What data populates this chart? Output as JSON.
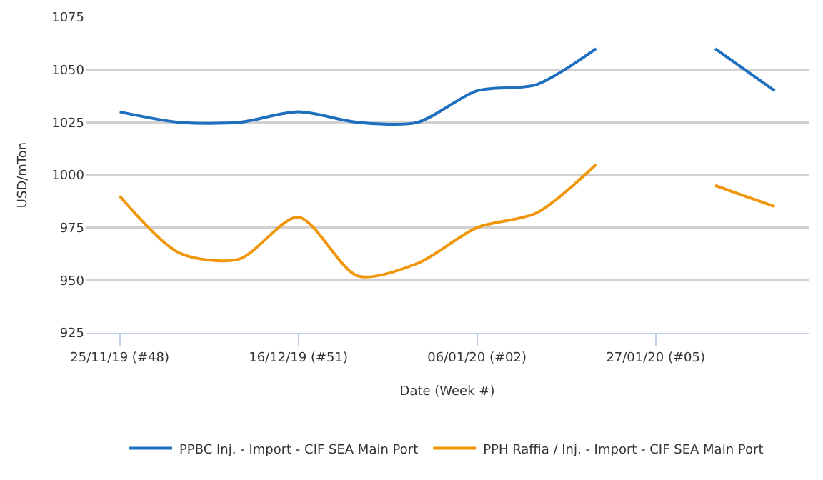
{
  "chart_data": {
    "type": "line",
    "xlabel": "Date (Week #)",
    "ylabel": "USD/mTon",
    "x": [
      "2019-11-25",
      "2019-12-02",
      "2019-12-09",
      "2019-12-16",
      "2019-12-23",
      "2019-12-30",
      "2020-01-06",
      "2020-01-13",
      "2020-01-20",
      "2020-01-27",
      "2020-02-03",
      "2020-02-10"
    ],
    "series": [
      {
        "name": "PPBC Inj. - Import - CIF SEA Main Port",
        "color": "#1f6fbf",
        "values": [
          1030,
          1025,
          1025,
          1030,
          1025,
          1025,
          1040,
          1043,
          1060,
          null,
          1060,
          1040
        ]
      },
      {
        "name": "PPH Raffia / Inj. - Import - CIF SEA Main Port",
        "color": "#f0960a",
        "values": [
          990,
          963,
          960,
          980,
          952,
          958,
          975,
          982,
          1005,
          null,
          995,
          985
        ]
      }
    ],
    "xlim": [
      "2019-11-21",
      "2020-02-14"
    ],
    "xticks": [
      {
        "value": "2019-11-25",
        "label": "25/11/19 (#48)"
      },
      {
        "value": "2019-12-16",
        "label": "16/12/19 (#51)"
      },
      {
        "value": "2020-01-06",
        "label": "06/01/20 (#02)"
      },
      {
        "value": "2020-01-27",
        "label": "27/01/20 (#05)"
      }
    ],
    "ylim": [
      925,
      1075
    ],
    "yticks": [
      925,
      950,
      975,
      1000,
      1025,
      1050,
      1075
    ],
    "grid": "y",
    "legend": "bottom",
    "marker": "none",
    "line_style": "solid"
  }
}
